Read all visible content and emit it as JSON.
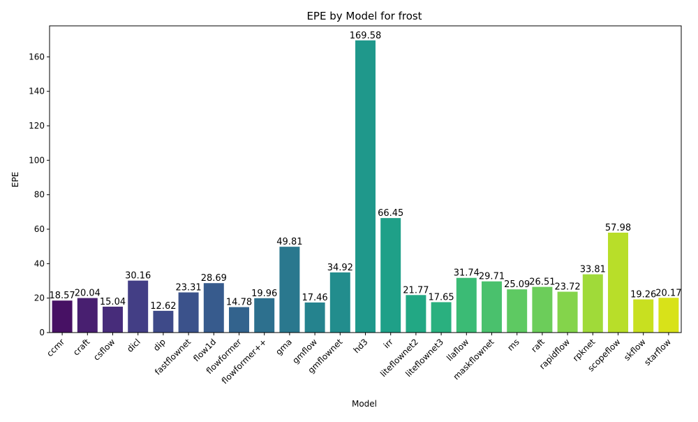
{
  "chart_data": {
    "type": "bar",
    "title": "EPE by Model for frost",
    "xlabel": "Model",
    "ylabel": "EPE",
    "ylim": [
      0,
      178
    ],
    "yticks": [
      0,
      20,
      40,
      60,
      80,
      100,
      120,
      140,
      160
    ],
    "grid": false,
    "legend": "none",
    "palette": "viridis",
    "categories": [
      "ccmr",
      "craft",
      "csflow",
      "dicl",
      "dip",
      "fastflownet",
      "flow1d",
      "flowformer",
      "flowformer++",
      "gma",
      "gmflow",
      "gmflownet",
      "hd3",
      "irr",
      "liteflownet2",
      "liteflownet3",
      "llaflow",
      "maskflownet",
      "ms",
      "raft",
      "rapidflow",
      "rpknet",
      "scopeflow",
      "skflow",
      "starflow"
    ],
    "values": [
      18.57,
      20.04,
      15.04,
      30.16,
      12.62,
      23.31,
      28.69,
      14.78,
      19.96,
      49.81,
      17.46,
      34.92,
      169.58,
      66.45,
      21.77,
      17.65,
      31.74,
      29.71,
      25.09,
      26.51,
      23.72,
      33.81,
      57.98,
      19.26,
      20.17
    ],
    "data_labels": [
      "18.57",
      "20.04",
      "15.04",
      "30.16",
      "12.62",
      "23.31",
      "28.69",
      "14.78",
      "19.96",
      "49.81",
      "17.46",
      "34.92",
      "169.58",
      "66.45",
      "21.77",
      "17.65",
      "31.74",
      "29.71",
      "25.09",
      "26.51",
      "23.72",
      "33.81",
      "57.98",
      "19.26",
      "20.17"
    ],
    "colors": [
      "#471164",
      "#481f70",
      "#472c7a",
      "#433e85",
      "#3e4a89",
      "#3b528b",
      "#375b8d",
      "#33638d",
      "#2d708e",
      "#2a788e",
      "#25838e",
      "#228d8d",
      "#1f988b",
      "#1fa088",
      "#22a884",
      "#2ab07f",
      "#3bbb75",
      "#4ac16d",
      "#5ec962",
      "#6ccd5a",
      "#84d44b",
      "#a0da39",
      "#b8de29",
      "#c8e020",
      "#d8e219"
    ]
  }
}
